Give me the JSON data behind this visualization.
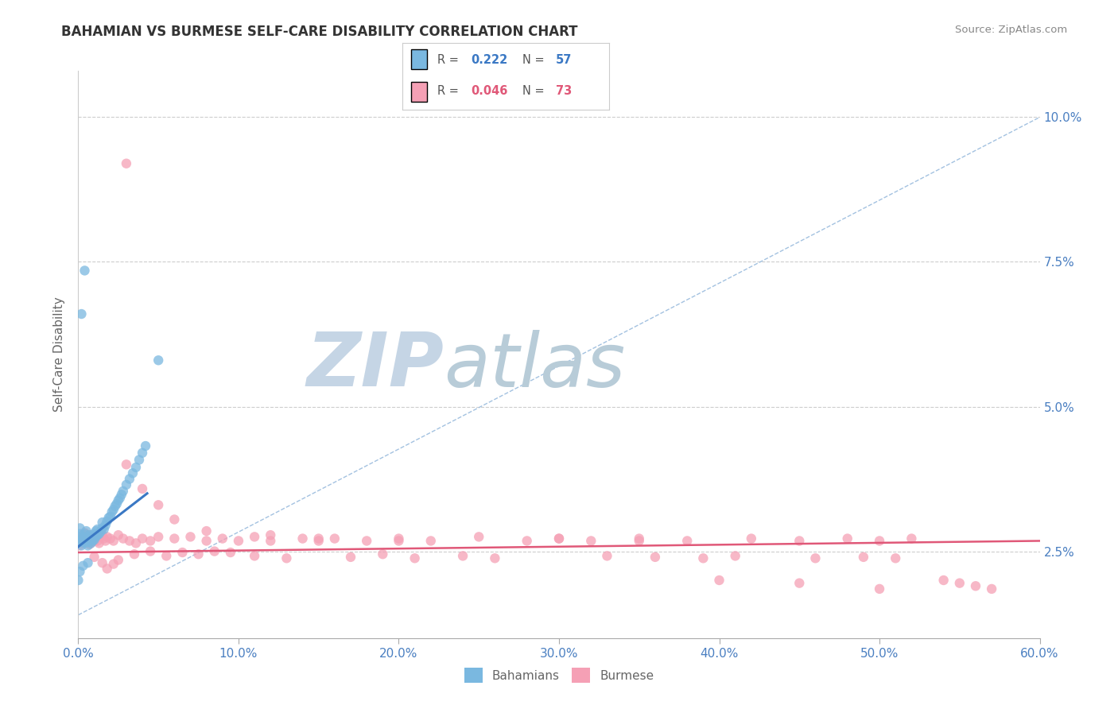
{
  "title": "BAHAMIAN VS BURMESE SELF-CARE DISABILITY CORRELATION CHART",
  "source": "Source: ZipAtlas.com",
  "ylabel": "Self-Care Disability",
  "xlim": [
    0.0,
    0.6
  ],
  "ylim": [
    0.01,
    0.108
  ],
  "yticks": [
    0.025,
    0.05,
    0.075,
    0.1
  ],
  "ytick_labels": [
    "2.5%",
    "5.0%",
    "7.5%",
    "10.0%"
  ],
  "xticks": [
    0.0,
    0.1,
    0.2,
    0.3,
    0.4,
    0.5,
    0.6
  ],
  "xtick_labels": [
    "0.0%",
    "10.0%",
    "20.0%",
    "30.0%",
    "40.0%",
    "50.0%",
    "60.0%"
  ],
  "bahamian_R": 0.222,
  "bahamian_N": 57,
  "burmese_R": 0.046,
  "burmese_N": 73,
  "blue_color": "#7ab8e0",
  "pink_color": "#f5a0b5",
  "blue_line_color": "#3a78c4",
  "pink_line_color": "#e05878",
  "diag_color": "#99bbdd",
  "grid_color": "#c8c8c8",
  "title_color": "#333333",
  "axis_label_color": "#666666",
  "tick_color": "#4a7fc1",
  "watermark_zip_color": "#c8d8e8",
  "watermark_atlas_color": "#b0c8d8",
  "bahamian_x": [
    0.0,
    0.0,
    0.001,
    0.001,
    0.002,
    0.002,
    0.003,
    0.003,
    0.004,
    0.004,
    0.005,
    0.005,
    0.006,
    0.006,
    0.007,
    0.007,
    0.008,
    0.008,
    0.009,
    0.009,
    0.01,
    0.01,
    0.011,
    0.011,
    0.012,
    0.012,
    0.013,
    0.014,
    0.015,
    0.015,
    0.016,
    0.017,
    0.018,
    0.019,
    0.02,
    0.021,
    0.022,
    0.023,
    0.024,
    0.025,
    0.026,
    0.027,
    0.028,
    0.03,
    0.032,
    0.034,
    0.036,
    0.038,
    0.04,
    0.042,
    0.0,
    0.001,
    0.003,
    0.006,
    0.002,
    0.004,
    0.05
  ],
  "bahamian_y": [
    0.0275,
    0.0265,
    0.028,
    0.029,
    0.027,
    0.026,
    0.0275,
    0.0265,
    0.028,
    0.0272,
    0.0265,
    0.0285,
    0.027,
    0.026,
    0.0278,
    0.0268,
    0.0272,
    0.0264,
    0.0276,
    0.0268,
    0.028,
    0.027,
    0.0275,
    0.0285,
    0.0288,
    0.0278,
    0.028,
    0.0284,
    0.029,
    0.03,
    0.0288,
    0.0295,
    0.0302,
    0.0308,
    0.031,
    0.0318,
    0.0322,
    0.0328,
    0.0332,
    0.0338,
    0.0342,
    0.0348,
    0.0354,
    0.0365,
    0.0375,
    0.0385,
    0.0395,
    0.0408,
    0.042,
    0.0432,
    0.02,
    0.0215,
    0.0225,
    0.023,
    0.066,
    0.0735,
    0.058
  ],
  "burmese_x": [
    0.0,
    0.001,
    0.002,
    0.003,
    0.003,
    0.004,
    0.004,
    0.005,
    0.005,
    0.006,
    0.006,
    0.007,
    0.007,
    0.008,
    0.008,
    0.009,
    0.009,
    0.01,
    0.01,
    0.011,
    0.012,
    0.013,
    0.014,
    0.015,
    0.016,
    0.017,
    0.018,
    0.02,
    0.022,
    0.025,
    0.028,
    0.032,
    0.036,
    0.04,
    0.045,
    0.05,
    0.06,
    0.07,
    0.08,
    0.09,
    0.1,
    0.11,
    0.12,
    0.14,
    0.15,
    0.16,
    0.18,
    0.2,
    0.22,
    0.25,
    0.28,
    0.3,
    0.32,
    0.35,
    0.38,
    0.42,
    0.45,
    0.48,
    0.5,
    0.52,
    0.03,
    0.04,
    0.05,
    0.06,
    0.08,
    0.12,
    0.15,
    0.2,
    0.3,
    0.35,
    0.4,
    0.45,
    0.5
  ],
  "burmese_y": [
    0.0268,
    0.026,
    0.0272,
    0.0264,
    0.0278,
    0.0268,
    0.0282,
    0.0272,
    0.0265,
    0.0275,
    0.0268,
    0.0262,
    0.0278,
    0.027,
    0.0265,
    0.0272,
    0.0268,
    0.0275,
    0.0268,
    0.0272,
    0.0268,
    0.0264,
    0.0275,
    0.0278,
    0.0272,
    0.0268,
    0.0275,
    0.0272,
    0.0268,
    0.0278,
    0.0272,
    0.0268,
    0.0264,
    0.0272,
    0.0268,
    0.0275,
    0.0272,
    0.0275,
    0.0268,
    0.0272,
    0.0268,
    0.0275,
    0.0278,
    0.0272,
    0.0268,
    0.0272,
    0.0268,
    0.0272,
    0.0268,
    0.0275,
    0.0268,
    0.0272,
    0.0268,
    0.0272,
    0.0268,
    0.0272,
    0.0268,
    0.0272,
    0.0268,
    0.0272,
    0.04,
    0.0358,
    0.033,
    0.0305,
    0.0285,
    0.0268,
    0.0272,
    0.0268,
    0.0272,
    0.0268,
    0.02,
    0.0195,
    0.0185
  ],
  "burmese_outlier_x": [
    0.03
  ],
  "burmese_outlier_y": [
    0.092
  ],
  "burmese_extra_x": [
    0.01,
    0.015,
    0.018,
    0.022,
    0.025,
    0.035,
    0.045,
    0.055,
    0.065,
    0.075,
    0.085,
    0.095,
    0.11,
    0.13,
    0.17,
    0.19,
    0.21,
    0.24,
    0.26,
    0.33,
    0.36,
    0.39,
    0.41,
    0.46,
    0.49,
    0.51,
    0.54,
    0.55,
    0.56,
    0.57
  ],
  "burmese_extra_y": [
    0.024,
    0.023,
    0.022,
    0.0228,
    0.0235,
    0.0245,
    0.025,
    0.0242,
    0.0248,
    0.0245,
    0.025,
    0.0248,
    0.0242,
    0.0238,
    0.024,
    0.0245,
    0.0238,
    0.0242,
    0.0238,
    0.0242,
    0.024,
    0.0238,
    0.0242,
    0.0238,
    0.024,
    0.0238,
    0.02,
    0.0195,
    0.019,
    0.0185
  ]
}
